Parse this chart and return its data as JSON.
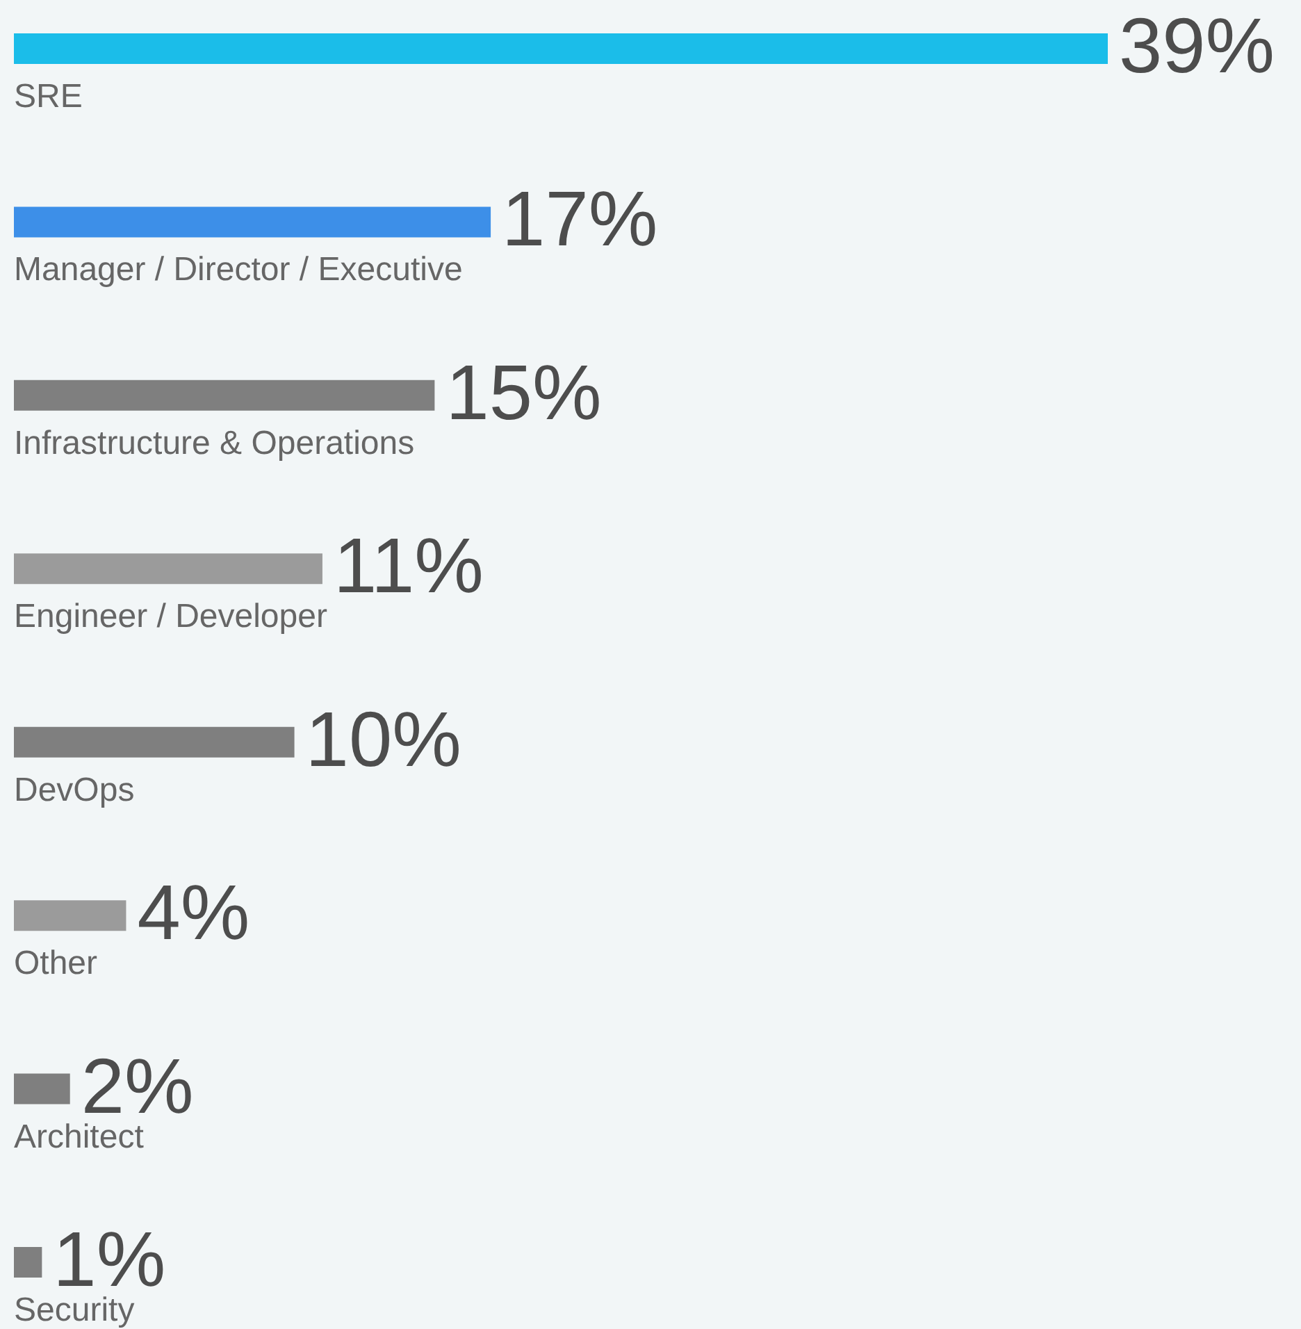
{
  "chart_data": {
    "type": "bar",
    "orientation": "horizontal",
    "categories": [
      "SRE",
      "Manager / Director / Executive",
      "Infrastructure & Operations",
      "Engineer / Developer",
      "DevOps",
      "Other",
      "Architect",
      "Security"
    ],
    "values": [
      39,
      17,
      15,
      11,
      10,
      4,
      2,
      1
    ],
    "value_labels": [
      "39%",
      "17%",
      "15%",
      "11%",
      "10%",
      "4%",
      "2%",
      "1%"
    ],
    "colors": [
      "#1bbde9",
      "#3d8fe8",
      "#7f7f7f",
      "#9b9b9b",
      "#7f7f7f",
      "#9b9b9b",
      "#7f7f7f",
      "#7f7f7f"
    ]
  }
}
